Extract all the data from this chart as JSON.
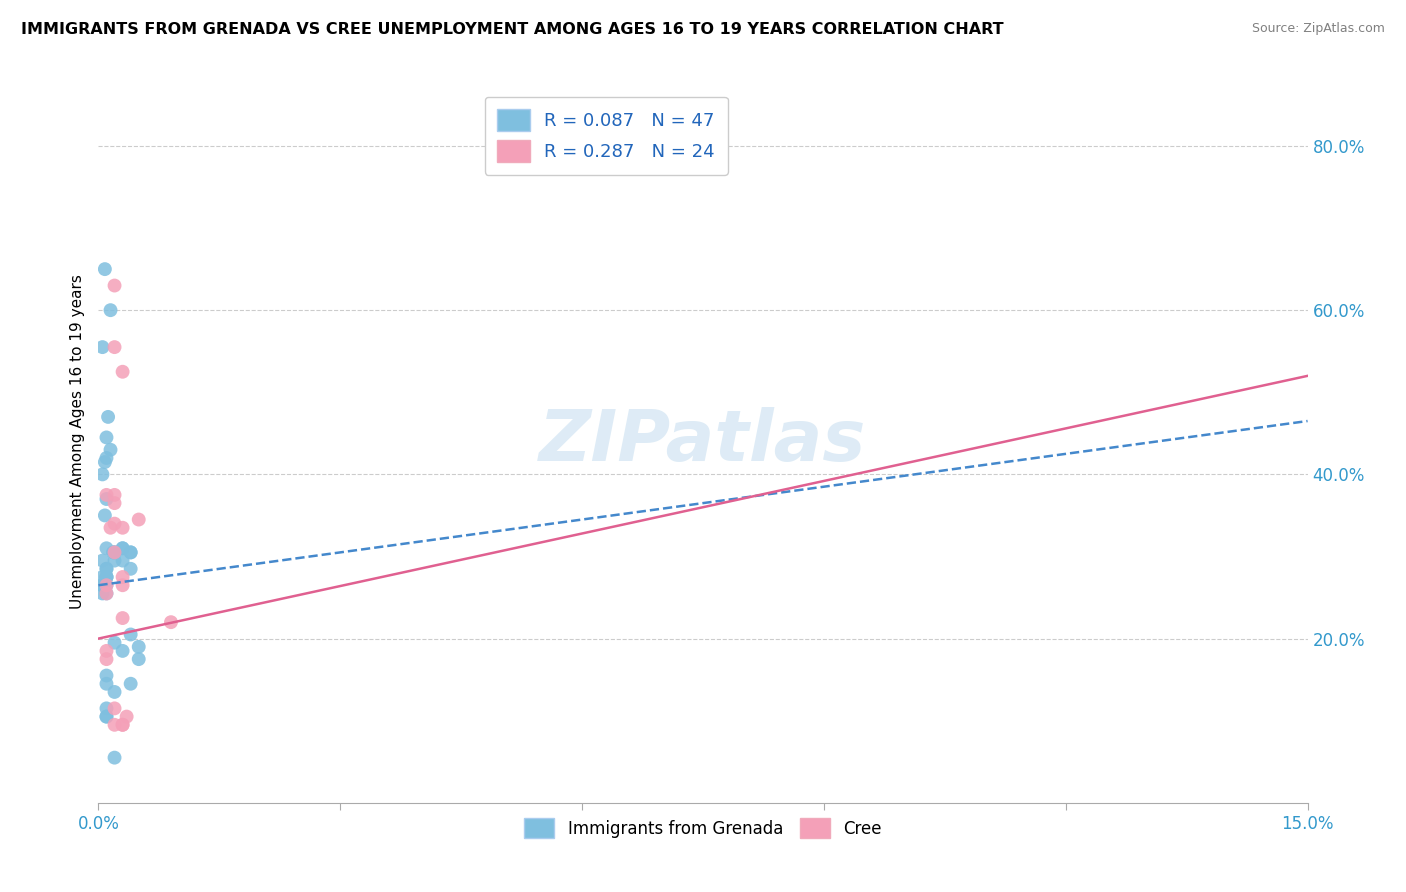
{
  "title": "IMMIGRANTS FROM GRENADA VS CREE UNEMPLOYMENT AMONG AGES 16 TO 19 YEARS CORRELATION CHART",
  "source": "Source: ZipAtlas.com",
  "ylabel": "Unemployment Among Ages 16 to 19 years",
  "xlim": [
    0.0,
    0.15
  ],
  "ylim": [
    0.0,
    0.88
  ],
  "xticks": [
    0.0,
    0.03,
    0.06,
    0.09,
    0.12,
    0.15
  ],
  "xticklabels": [
    "0.0%",
    "",
    "",
    "",
    "",
    "15.0%"
  ],
  "yticks_right": [
    0.2,
    0.4,
    0.6,
    0.8
  ],
  "ytick_right_labels": [
    "20.0%",
    "40.0%",
    "60.0%",
    "80.0%"
  ],
  "blue_color": "#7fbfdf",
  "pink_color": "#f4a0b8",
  "blue_line_color": "#4488cc",
  "pink_line_color": "#e06090",
  "blue_scatter": {
    "x": [
      0.0008,
      0.0015,
      0.0005,
      0.0012,
      0.001,
      0.0008,
      0.0015,
      0.001,
      0.0005,
      0.001,
      0.0008,
      0.0018,
      0.001,
      0.003,
      0.004,
      0.002,
      0.003,
      0.004,
      0.001,
      0.0005,
      0.001,
      0.001,
      0.0005,
      0.0005,
      0.0005,
      0.001,
      0.001,
      0.0005,
      0.002,
      0.001,
      0.001,
      0.002,
      0.003,
      0.004,
      0.003,
      0.004,
      0.002,
      0.005,
      0.004,
      0.001,
      0.002,
      0.001,
      0.001,
      0.001,
      0.005,
      0.002,
      0.001
    ],
    "y": [
      0.65,
      0.6,
      0.555,
      0.47,
      0.445,
      0.415,
      0.43,
      0.42,
      0.4,
      0.37,
      0.35,
      0.305,
      0.31,
      0.31,
      0.305,
      0.295,
      0.31,
      0.285,
      0.285,
      0.275,
      0.265,
      0.275,
      0.265,
      0.255,
      0.265,
      0.255,
      0.275,
      0.295,
      0.305,
      0.285,
      0.275,
      0.305,
      0.295,
      0.305,
      0.185,
      0.205,
      0.195,
      0.175,
      0.145,
      0.155,
      0.135,
      0.145,
      0.105,
      0.115,
      0.19,
      0.055,
      0.105
    ]
  },
  "pink_scatter": {
    "x": [
      0.002,
      0.002,
      0.003,
      0.002,
      0.001,
      0.002,
      0.002,
      0.0015,
      0.002,
      0.003,
      0.003,
      0.003,
      0.005,
      0.001,
      0.003,
      0.0035,
      0.002,
      0.002,
      0.003,
      0.003,
      0.001,
      0.001,
      0.001,
      0.009
    ],
    "y": [
      0.63,
      0.555,
      0.525,
      0.375,
      0.375,
      0.34,
      0.365,
      0.335,
      0.305,
      0.335,
      0.275,
      0.265,
      0.345,
      0.265,
      0.225,
      0.105,
      0.115,
      0.095,
      0.095,
      0.095,
      0.185,
      0.175,
      0.255,
      0.22
    ]
  },
  "blue_line": {
    "x0": 0.0,
    "y0": 0.265,
    "x1": 0.15,
    "y1": 0.465
  },
  "pink_line": {
    "x0": 0.0,
    "y0": 0.2,
    "x1": 0.15,
    "y1": 0.52
  },
  "legend_labels": [
    "R = 0.087   N = 47",
    "R = 0.287   N = 24"
  ],
  "bottom_legend": [
    "Immigrants from Grenada",
    "Cree"
  ],
  "watermark": "ZIPatlas"
}
